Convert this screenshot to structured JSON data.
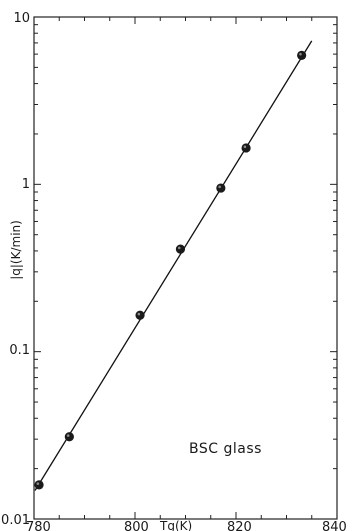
{
  "chart_data": {
    "type": "scatter",
    "title": "",
    "xlabel": "Tg(K)",
    "ylabel": "|q|(K/min)",
    "x_range": [
      780,
      840
    ],
    "y_range": [
      0.01,
      10
    ],
    "y_scale": "log",
    "grid": false,
    "x_ticks": [
      "780",
      "800",
      "820",
      "840"
    ],
    "y_ticks": [
      "10",
      "1",
      "0.1",
      "0.01"
    ],
    "annotation": "BSC glass",
    "points": [
      {
        "x": 781,
        "y": 0.016
      },
      {
        "x": 787,
        "y": 0.031
      },
      {
        "x": 801,
        "y": 0.165
      },
      {
        "x": 809,
        "y": 0.41
      },
      {
        "x": 817,
        "y": 0.95
      },
      {
        "x": 822,
        "y": 1.65
      },
      {
        "x": 833,
        "y": 5.9
      }
    ],
    "fit_line": [
      {
        "x": 780.2,
        "y": 0.0148
      },
      {
        "x": 835,
        "y": 7.2
      }
    ]
  }
}
